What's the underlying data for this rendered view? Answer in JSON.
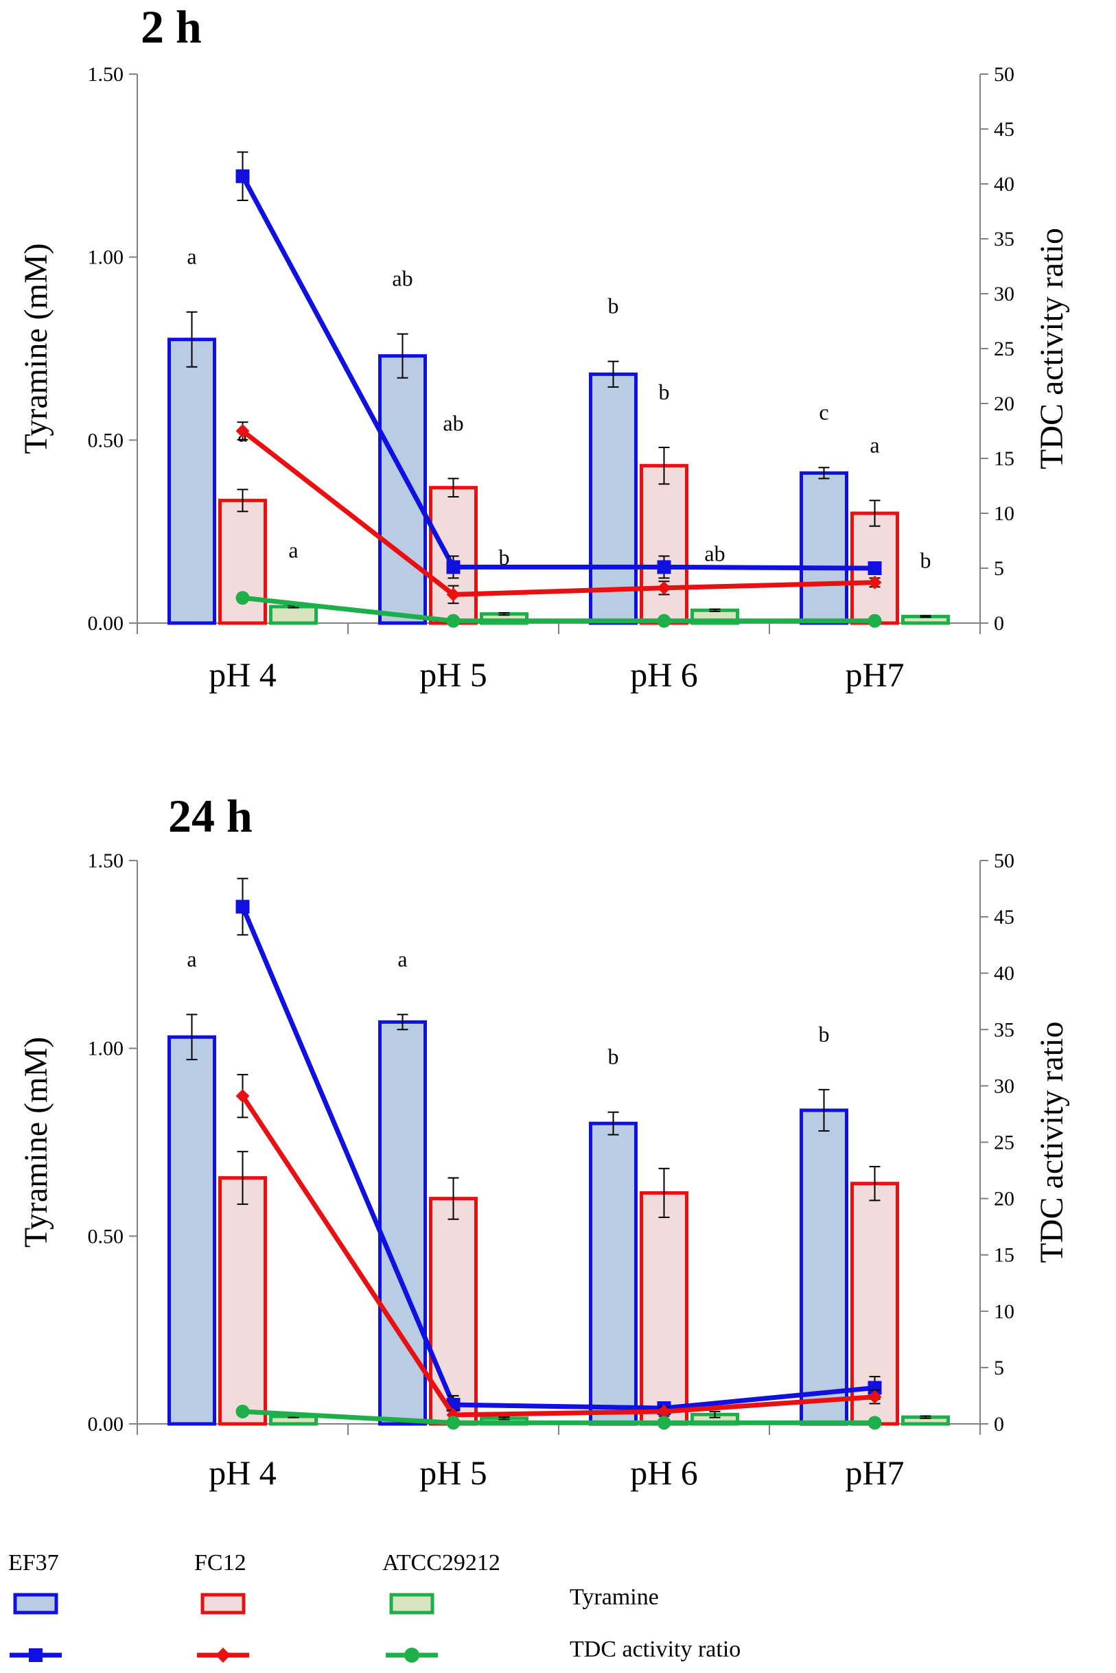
{
  "chart_data": [
    {
      "type": "bar+line",
      "title": "2 h",
      "ylabel": "Tyramine (mM)",
      "y2label": "TDC activity ratio",
      "ylim": [
        0,
        1.5
      ],
      "y2lim": [
        0,
        50
      ],
      "yticks": [
        "0.00",
        "0.50",
        "1.00",
        "1.50"
      ],
      "y2ticks": [
        "0",
        "5",
        "10",
        "15",
        "20",
        "25",
        "30",
        "35",
        "40",
        "45",
        "50"
      ],
      "categories": [
        "pH 4",
        "pH 5",
        "pH 6",
        "pH7"
      ],
      "bars": [
        {
          "name": "EF37",
          "values": [
            0.775,
            0.73,
            0.68,
            0.41
          ],
          "errors": [
            0.075,
            0.06,
            0.035,
            0.015
          ],
          "labels": [
            "a",
            "ab",
            "b",
            "c"
          ]
        },
        {
          "name": "FC12",
          "values": [
            0.335,
            0.37,
            0.43,
            0.3
          ],
          "errors": [
            0.03,
            0.025,
            0.05,
            0.035
          ],
          "labels": [
            "a",
            "ab",
            "b",
            "a"
          ]
        },
        {
          "name": "ATCC29212",
          "values": [
            0.045,
            0.025,
            0.035,
            0.018
          ],
          "errors": [
            0.003,
            0.003,
            0.003,
            0.002
          ],
          "labels": [
            "a",
            "b",
            "ab",
            "b"
          ]
        }
      ],
      "lines": [
        {
          "name": "EF37",
          "values": [
            40.7,
            5.1,
            5.1,
            5.0
          ],
          "errors": [
            2.2,
            1.0,
            1.0,
            0.4
          ]
        },
        {
          "name": "FC12",
          "values": [
            17.5,
            2.6,
            3.2,
            3.7
          ],
          "errors": [
            0.8,
            0.8,
            0.6,
            0.4
          ]
        },
        {
          "name": "ATCC29212",
          "values": [
            2.3,
            0.2,
            0.2,
            0.2
          ],
          "errors": [
            0.2,
            0.1,
            0.1,
            0.1
          ]
        }
      ]
    },
    {
      "type": "bar+line",
      "title": "24 h",
      "ylabel": "Tyramine (mM)",
      "y2label": "TDC activity ratio",
      "ylim": [
        0,
        1.5
      ],
      "y2lim": [
        0,
        50
      ],
      "yticks": [
        "0.00",
        "0.50",
        "1.00",
        "1.50"
      ],
      "y2ticks": [
        "0",
        "5",
        "10",
        "15",
        "20",
        "25",
        "30",
        "35",
        "40",
        "45",
        "50"
      ],
      "categories": [
        "pH 4",
        "pH 5",
        "pH 6",
        "pH7"
      ],
      "bars": [
        {
          "name": "EF37",
          "values": [
            1.03,
            1.07,
            0.8,
            0.835
          ],
          "errors": [
            0.06,
            0.02,
            0.03,
            0.055
          ],
          "labels": [
            "a",
            "a",
            "b",
            "b"
          ]
        },
        {
          "name": "FC12",
          "values": [
            0.655,
            0.6,
            0.615,
            0.64
          ],
          "errors": [
            0.07,
            0.055,
            0.065,
            0.045
          ],
          "labels": [
            "",
            "",
            "",
            ""
          ]
        },
        {
          "name": "ATCC29212",
          "values": [
            0.02,
            0.015,
            0.025,
            0.018
          ],
          "errors": [
            0.003,
            0.003,
            0.008,
            0.003
          ],
          "labels": [
            "",
            "",
            "",
            ""
          ]
        }
      ],
      "lines": [
        {
          "name": "EF37",
          "values": [
            45.9,
            1.7,
            1.4,
            3.2
          ],
          "errors": [
            2.5,
            0.8,
            0.5,
            1.0
          ]
        },
        {
          "name": "FC12",
          "values": [
            29.1,
            0.8,
            1.1,
            2.4
          ],
          "errors": [
            1.9,
            0.4,
            0.4,
            0.6
          ]
        },
        {
          "name": "ATCC29212",
          "values": [
            1.1,
            0.1,
            0.1,
            0.1
          ],
          "errors": [
            0.1,
            0.05,
            0.05,
            0.05
          ]
        }
      ]
    }
  ],
  "legend": {
    "strains": [
      "EF37",
      "FC12",
      "ATCC29212"
    ],
    "bar_label": "Tyramine",
    "line_label": "TDC activity ratio"
  },
  "colors": {
    "EF37": {
      "line": "#1010e0",
      "fill": "#b8cce4"
    },
    "FC12": {
      "line": "#e81010",
      "fill": "#f2dcdb"
    },
    "ATCC29212": {
      "line": "#1db04a",
      "fill": "#d7e4bd"
    },
    "axis": "#808080",
    "error": "#000000"
  }
}
